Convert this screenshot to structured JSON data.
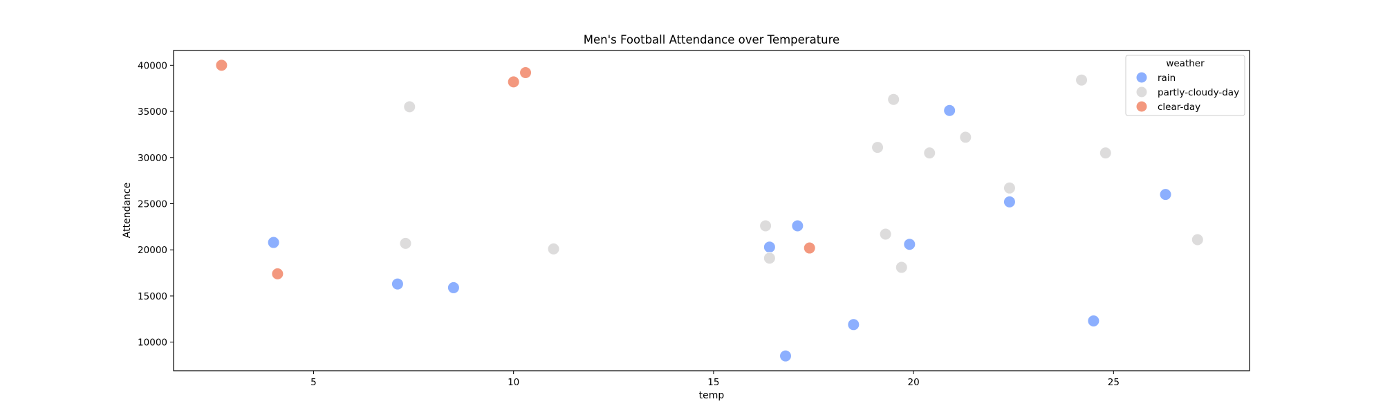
{
  "chart_data": {
    "type": "scatter",
    "title": "Men's Football Attendance over Temperature",
    "xlabel": "temp",
    "ylabel": "Attendance",
    "xlim": [
      1.5,
      28.4
    ],
    "ylim": [
      6900,
      41600
    ],
    "xticks": [
      5,
      10,
      15,
      20,
      25
    ],
    "yticks": [
      10000,
      15000,
      20000,
      25000,
      30000,
      35000,
      40000
    ],
    "grid": false,
    "legend": {
      "title": "weather",
      "placement": "top-right"
    },
    "series": [
      {
        "name": "rain",
        "color": "#8caffe",
        "points": [
          [
            4.0,
            20800
          ],
          [
            7.1,
            16300
          ],
          [
            8.5,
            15900
          ],
          [
            16.4,
            20300
          ],
          [
            16.8,
            8500
          ],
          [
            17.1,
            22600
          ],
          [
            18.5,
            11900
          ],
          [
            19.9,
            20600
          ],
          [
            20.9,
            35100
          ],
          [
            22.4,
            25200
          ],
          [
            24.5,
            12300
          ],
          [
            26.3,
            26000
          ]
        ]
      },
      {
        "name": "partly-cloudy-day",
        "color": "#dddcdc",
        "points": [
          [
            7.3,
            20700
          ],
          [
            7.4,
            35500
          ],
          [
            11.0,
            20100
          ],
          [
            16.3,
            22600
          ],
          [
            16.4,
            19100
          ],
          [
            19.1,
            31100
          ],
          [
            19.3,
            21700
          ],
          [
            19.5,
            36300
          ],
          [
            19.7,
            18100
          ],
          [
            20.4,
            30500
          ],
          [
            21.3,
            32200
          ],
          [
            22.4,
            26700
          ],
          [
            24.2,
            38400
          ],
          [
            24.8,
            30500
          ],
          [
            27.1,
            21100
          ]
        ]
      },
      {
        "name": "clear-day",
        "color": "#f3987e",
        "points": [
          [
            2.7,
            40000
          ],
          [
            4.1,
            17400
          ],
          [
            10.0,
            38200
          ],
          [
            10.3,
            39200
          ],
          [
            17.4,
            20200
          ]
        ]
      }
    ]
  }
}
